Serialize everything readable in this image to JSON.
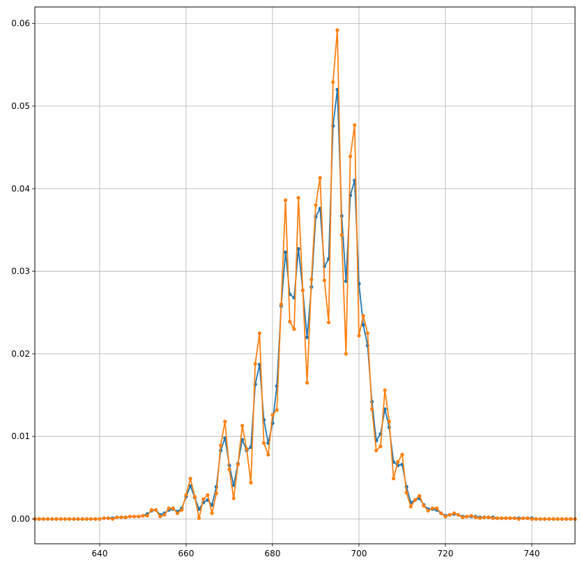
{
  "chart_data": {
    "type": "line",
    "title": "",
    "xlabel": "",
    "ylabel": "",
    "xlim": [
      625,
      750
    ],
    "ylim": [
      -0.003,
      0.062
    ],
    "grid": true,
    "x_ticks": [
      640,
      660,
      680,
      700,
      720,
      740
    ],
    "y_ticks": [
      0.0,
      0.01,
      0.02,
      0.03,
      0.04,
      0.05,
      0.06
    ],
    "x_tick_labels": [
      "640",
      "660",
      "680",
      "700",
      "720",
      "740"
    ],
    "y_tick_labels": [
      "0.00",
      "0.01",
      "0.02",
      "0.03",
      "0.04",
      "0.05",
      "0.06"
    ],
    "x": [
      625,
      626,
      627,
      628,
      629,
      630,
      631,
      632,
      633,
      634,
      635,
      636,
      637,
      638,
      639,
      640,
      641,
      642,
      643,
      644,
      645,
      646,
      647,
      648,
      649,
      650,
      651,
      652,
      653,
      654,
      655,
      656,
      657,
      658,
      659,
      660,
      661,
      662,
      663,
      664,
      665,
      666,
      667,
      668,
      669,
      670,
      671,
      672,
      673,
      674,
      675,
      676,
      677,
      678,
      679,
      680,
      681,
      682,
      683,
      684,
      685,
      686,
      687,
      688,
      689,
      690,
      691,
      692,
      693,
      694,
      695,
      696,
      697,
      698,
      699,
      700,
      701,
      702,
      703,
      704,
      705,
      706,
      707,
      708,
      709,
      710,
      711,
      712,
      713,
      714,
      715,
      716,
      717,
      718,
      719,
      720,
      721,
      722,
      723,
      724,
      725,
      726,
      727,
      728,
      729,
      730,
      731,
      732,
      733,
      734,
      735,
      736,
      737,
      738,
      739,
      740,
      741,
      742,
      743,
      744,
      745,
      746,
      747,
      748,
      749,
      750
    ],
    "series": [
      {
        "color": "#1f77b4",
        "values": [
          0.0,
          0.0,
          0.0,
          0.0,
          0.0,
          0.0,
          0.0,
          0.0,
          0.0,
          0.0,
          0.0,
          0.0,
          0.0,
          0.0,
          0.0,
          0.0,
          0.0001,
          0.0001,
          0.0001,
          0.0002,
          0.0002,
          0.0002,
          0.0003,
          0.0003,
          0.0003,
          0.0004,
          0.0006,
          0.001,
          0.0011,
          0.0005,
          0.0007,
          0.0011,
          0.0012,
          0.0009,
          0.0013,
          0.0027,
          0.004,
          0.0026,
          0.0012,
          0.002,
          0.0023,
          0.0017,
          0.0039,
          0.0083,
          0.0098,
          0.0065,
          0.0041,
          0.0067,
          0.0096,
          0.0083,
          0.0087,
          0.0163,
          0.0187,
          0.012,
          0.0092,
          0.0116,
          0.0161,
          0.0258,
          0.0323,
          0.0272,
          0.0268,
          0.0327,
          0.0277,
          0.022,
          0.0281,
          0.0366,
          0.0376,
          0.0306,
          0.0315,
          0.0476,
          0.052,
          0.0367,
          0.0288,
          0.0392,
          0.041,
          0.0285,
          0.0235,
          0.021,
          0.0142,
          0.0095,
          0.0103,
          0.0133,
          0.0111,
          0.0069,
          0.0065,
          0.0066,
          0.0039,
          0.002,
          0.0023,
          0.0025,
          0.0017,
          0.0012,
          0.0012,
          0.0011,
          0.0007,
          0.0004,
          0.0005,
          0.0006,
          0.0005,
          0.0003,
          0.0003,
          0.0003,
          0.0003,
          0.0002,
          0.0002,
          0.0002,
          0.0002,
          0.0001,
          0.0001,
          0.0001,
          0.0001,
          0.0001,
          0.0001,
          0.0001,
          0.0001,
          0.0001,
          0.0,
          0.0,
          0.0,
          0.0,
          0.0,
          0.0,
          0.0,
          0.0,
          0.0,
          0.0
        ]
      },
      {
        "color": "#ff7f0e",
        "values": [
          0.0,
          0.0,
          0.0,
          0.0,
          0.0,
          0.0,
          0.0,
          0.0,
          0.0,
          0.0,
          0.0,
          0.0,
          0.0,
          0.0,
          0.0,
          0.0,
          0.0001,
          0.0001,
          0.0,
          0.0002,
          0.0002,
          0.0002,
          0.0003,
          0.0003,
          0.0003,
          0.0004,
          0.0004,
          0.0011,
          0.0011,
          0.0003,
          0.0005,
          0.0013,
          0.0013,
          0.0007,
          0.0011,
          0.0029,
          0.0049,
          0.0027,
          0.0001,
          0.0024,
          0.0029,
          0.0007,
          0.0031,
          0.0089,
          0.0118,
          0.006,
          0.0025,
          0.0066,
          0.0113,
          0.0085,
          0.0044,
          0.0188,
          0.0225,
          0.0092,
          0.0078,
          0.0126,
          0.0132,
          0.026,
          0.0386,
          0.0239,
          0.023,
          0.0389,
          0.0277,
          0.0165,
          0.029,
          0.038,
          0.0413,
          0.0289,
          0.0238,
          0.0529,
          0.0592,
          0.0344,
          0.02,
          0.0439,
          0.0477,
          0.0222,
          0.0246,
          0.0225,
          0.0133,
          0.0083,
          0.0088,
          0.0156,
          0.0118,
          0.0049,
          0.0069,
          0.0078,
          0.0032,
          0.0015,
          0.0023,
          0.0028,
          0.0016,
          0.001,
          0.0013,
          0.0013,
          0.0007,
          0.0003,
          0.0005,
          0.0007,
          0.0005,
          0.0002,
          0.0003,
          0.0004,
          0.0002,
          0.0001,
          0.0002,
          0.0002,
          0.0001,
          0.0001,
          0.0001,
          0.0001,
          0.0001,
          0.0001,
          0.0,
          0.0001,
          0.0001,
          0.0,
          0.0,
          0.0,
          0.0,
          0.0,
          0.0,
          0.0,
          0.0,
          0.0,
          0.0,
          0.0
        ]
      }
    ]
  }
}
